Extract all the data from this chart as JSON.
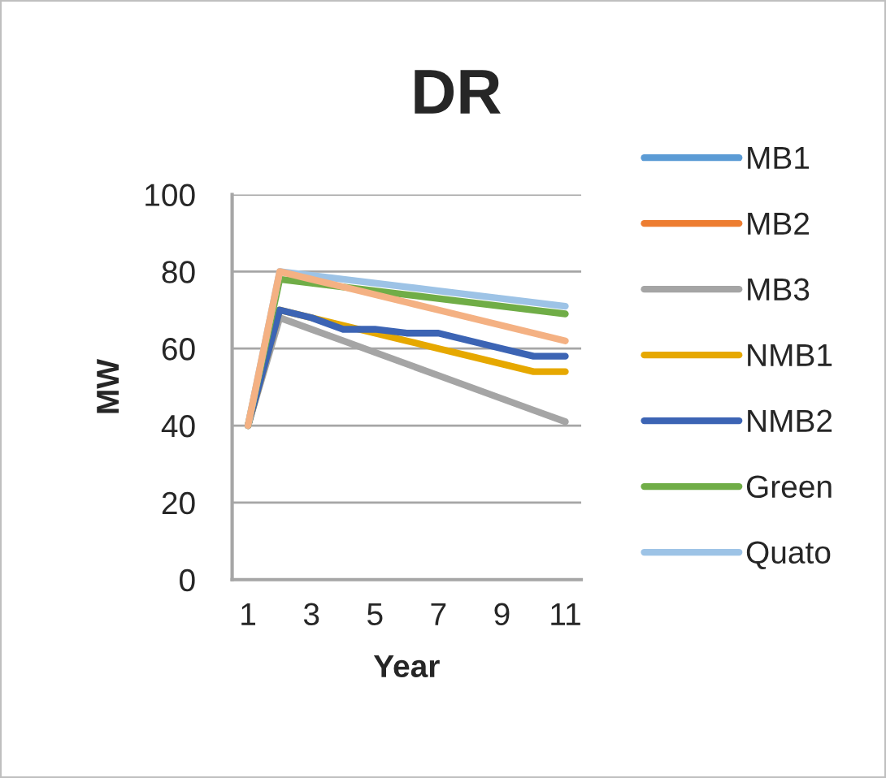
{
  "chart_data": {
    "type": "line",
    "title": "DR",
    "xlabel": "Year",
    "ylabel": "MW",
    "x": [
      1,
      2,
      3,
      4,
      5,
      6,
      7,
      8,
      9,
      10,
      11
    ],
    "xlim": [
      0.5,
      11.5
    ],
    "xticks": [
      1,
      3,
      5,
      7,
      9,
      11
    ],
    "ylim": [
      0,
      100
    ],
    "yticks": [
      0,
      20,
      40,
      60,
      80,
      100
    ],
    "grid": "y",
    "legend": "right",
    "line_style": "solid",
    "series": [
      {
        "name": "MB1",
        "color": "#5b9bd5",
        "values": [
          null,
          null,
          null,
          null,
          null,
          null,
          null,
          null,
          null,
          null,
          null
        ]
      },
      {
        "name": "MB2",
        "color": "#ed7d31",
        "values": [
          null,
          null,
          null,
          null,
          null,
          null,
          null,
          null,
          null,
          null,
          null
        ]
      },
      {
        "name": "MB3",
        "color": "#a5a5a5",
        "values": [
          40,
          68,
          65,
          62,
          59,
          56,
          53,
          50,
          47,
          44,
          41
        ]
      },
      {
        "name": "NMB1",
        "color": "#e6a800",
        "values": [
          40,
          70,
          68,
          66,
          64,
          62,
          60,
          58,
          56,
          54,
          54
        ]
      },
      {
        "name": "NMB2",
        "color": "#3c64b4",
        "values": [
          40,
          70,
          68,
          65,
          65,
          64,
          64,
          62,
          60,
          58,
          58
        ]
      },
      {
        "name": "Green",
        "color": "#70ad47",
        "values": [
          40,
          78,
          77,
          76,
          75,
          74,
          73,
          72,
          71,
          70,
          69
        ]
      },
      {
        "name": "Quato",
        "color": "#9dc3e6",
        "values": [
          40,
          80,
          79,
          78,
          77,
          76,
          75,
          74,
          73,
          72,
          71
        ]
      },
      {
        "color": "#f4b183",
        "values": [
          40,
          80,
          78,
          76,
          74,
          72,
          70,
          68,
          66,
          64,
          62
        ]
      }
    ]
  }
}
